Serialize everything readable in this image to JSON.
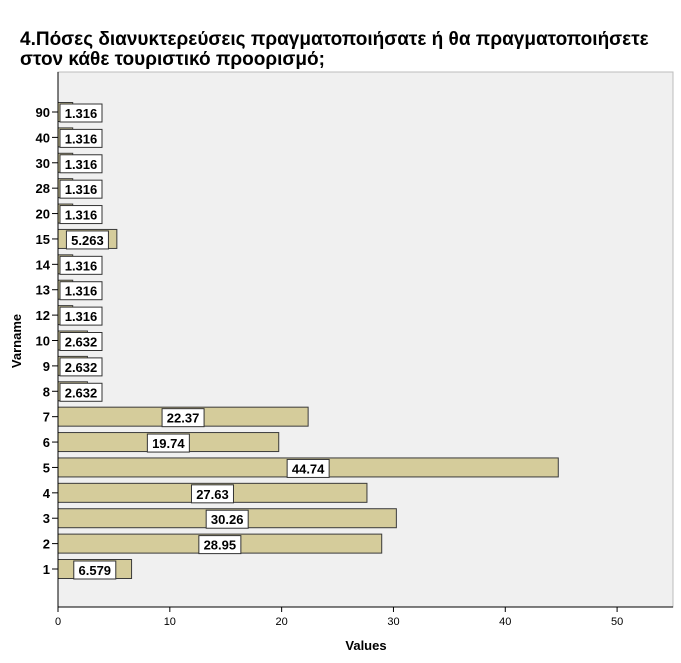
{
  "chart_data": {
    "type": "bar",
    "orientation": "horizontal",
    "title": "4.Πόσες διανυκτερεύσεις πραγματοποιήσατε ή θα πραγματοποιήσετε στον κάθε τουριστικό προορισμό;",
    "xlabel": "Values",
    "ylabel": "Varname",
    "categories": [
      "1",
      "2",
      "3",
      "4",
      "5",
      "6",
      "7",
      "8",
      "9",
      "10",
      "12",
      "13",
      "14",
      "15",
      "20",
      "28",
      "30",
      "40",
      "90"
    ],
    "values": [
      6.579,
      28.95,
      30.26,
      27.63,
      44.74,
      19.74,
      22.37,
      2.632,
      2.632,
      2.632,
      1.316,
      1.316,
      1.316,
      5.263,
      1.316,
      1.316,
      1.316,
      1.316,
      1.316
    ],
    "value_labels": [
      "6.579",
      "28.95",
      "30.26",
      "27.63",
      "44.74",
      "19.74",
      "22.37",
      "2.632",
      "2.632",
      "2.632",
      "1.316",
      "1.316",
      "1.316",
      "5.263",
      "1.316",
      "1.316",
      "1.316",
      "1.316",
      "1.316"
    ],
    "xlim": [
      0,
      55
    ],
    "xticks": [
      0,
      10,
      20,
      30,
      40,
      50
    ],
    "xtick_labels": [
      "0",
      "10",
      "20",
      "30",
      "40",
      "50"
    ],
    "grid": false,
    "legend": "none",
    "bar_color": "#d5cc9b",
    "bar_edge_color": "#3a3a3a",
    "plot_background": "#f0f0f0"
  }
}
